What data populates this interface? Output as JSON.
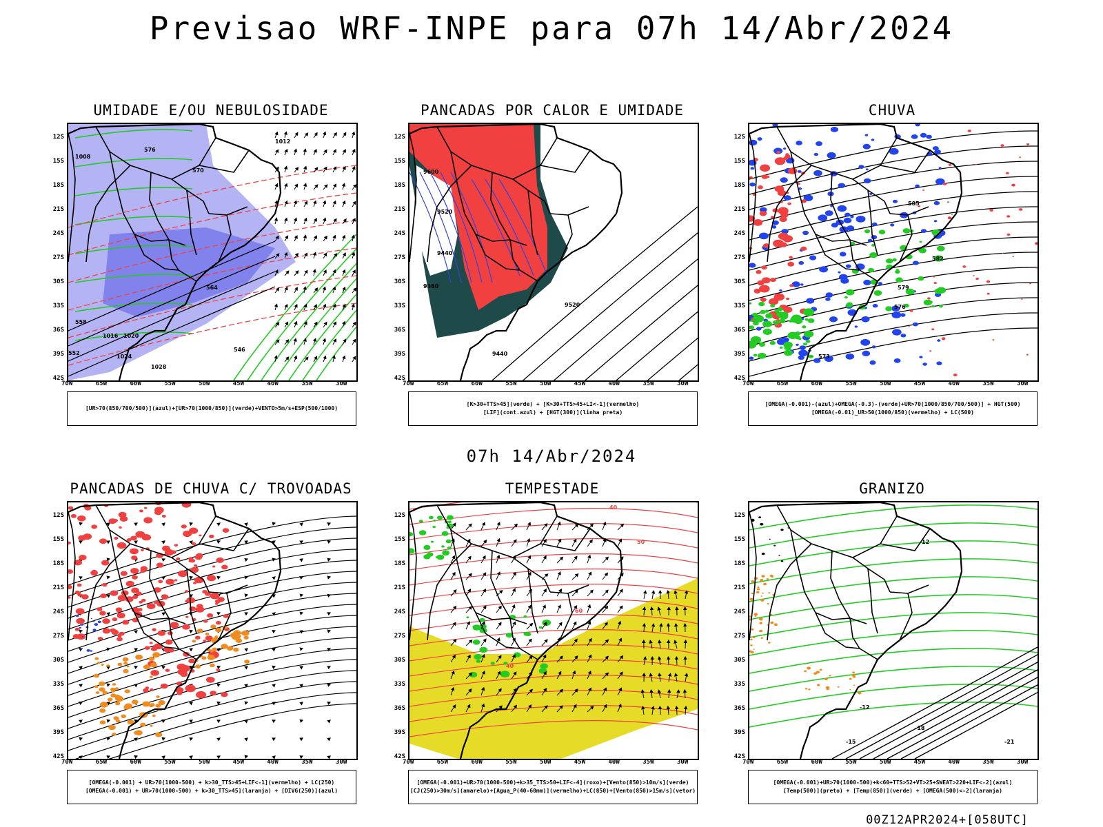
{
  "header": {
    "title": "Previsao WRF-INPE  para 07h 14/Abr/2024"
  },
  "mid_title": "07h 14/Abr/2024",
  "footer": {
    "stamp": "00Z12APR2024+[058UTC]"
  },
  "axes": {
    "lat_labels": [
      "12S",
      "15S",
      "18S",
      "21S",
      "24S",
      "27S",
      "30S",
      "33S",
      "36S",
      "39S",
      "42S"
    ],
    "lon_labels": [
      "70W",
      "65W",
      "60W",
      "55W",
      "50W",
      "45W",
      "40W",
      "35W",
      "30W"
    ]
  },
  "colors": {
    "blue_humidity": "#8c8cf0",
    "green_contour": "#22cc22",
    "red": "#f04040",
    "dark_teal": "#1e4a4a",
    "blue_rain": "#2244ee",
    "orange": "#f08c1e",
    "yellow": "#e6dc28"
  },
  "panels": [
    {
      "title": "UMIDADE E/OU NEBULOSIDADE",
      "legend": [
        "[UR>70(850/700/500)](azul)+[UR>70(1000/850)](verde)+VENTO>5m/s+ESP(500/1000)"
      ],
      "contour_labels": [
        "1012",
        "1008",
        "1016",
        "1020",
        "1024",
        "1028",
        "576",
        "570",
        "564",
        "558",
        "552",
        "546"
      ]
    },
    {
      "title": "PANCADAS POR CALOR E UMIDADE",
      "legend": [
        "[K>30+TTS>45](verde) + [K>30+TTS>45+LI<-1](vermelho)",
        "[LIF](cont.azul) + [HGT(300)](linha preta)"
      ],
      "contour_labels": [
        "9600",
        "9520",
        "9440",
        "9360",
        "9520",
        "9440"
      ]
    },
    {
      "title": "CHUVA",
      "legend": [
        "[OMEGA(-0.001)-(azul)+OMEGA(-0.3)-(verde)+UR>70(1000/850/700/500)] + HGT(500)",
        "[OMEGA(-0.01)_UR>50(1000/850)(vermelho) + LC(500)"
      ],
      "contour_labels": [
        "585",
        "582",
        "579",
        "576",
        "573"
      ]
    },
    {
      "title": "PANCADAS DE CHUVA C/ TROVOADAS",
      "legend": [
        "[OMEGA(-0.001) + UR>70(1000-500) + k>30_TTS>45+LIF<-1](vermelho) + LC(250)",
        "[OMEGA(-0.001) + UR>70(1000-500) + k>30_TTS>45](laranja) + [DIVG(250)](azul)"
      ],
      "contour_labels": []
    },
    {
      "title": "TEMPESTADE",
      "legend": [
        "[OMEGA(-0.001)+UR>70(1000-500)+k>35_TTS>50+LIF<-4](roxo)+[Vento(850)>10m/s](verde)",
        "[CJ(250)>30m/s](amarelo)+[Agua_P(40-60mm)](vermelho)+LC(850)+[Vento(850)>15m/s](vetor)"
      ],
      "contour_labels": [
        "40",
        "50",
        "60",
        "40"
      ]
    },
    {
      "title": "GRANIZO",
      "legend": [
        "[OMEGA(-0.001)+UR>70(1000-500)+k<60+TTS>52+VT>25+SWEAT>220+LIF<-2](azul)",
        "[Temp(500)](preto) + [Temp(850)](verde) + [OMEGA(500)<-2](laranja)"
      ],
      "contour_labels": [
        "-12",
        "-15",
        "-18",
        "-21",
        "12"
      ]
    }
  ]
}
